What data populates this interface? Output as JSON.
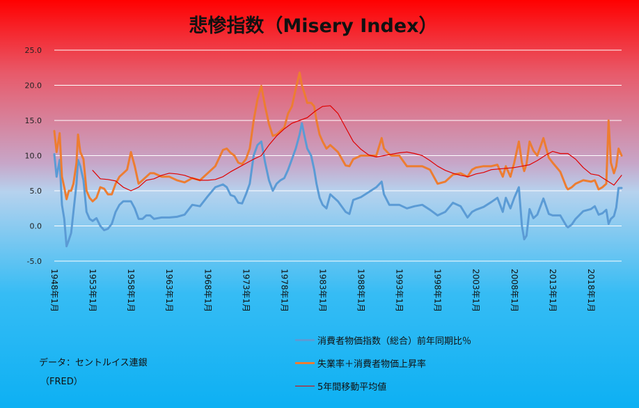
{
  "chart_data": {
    "type": "line",
    "title": "悲惨指数（Misery Index）",
    "y_ticks": [
      "25.0",
      "20.0",
      "15.0",
      "10.0",
      "5.0",
      "0.0",
      "-5.0"
    ],
    "ylim": [
      -5,
      25
    ],
    "x_ticks": [
      "1948年1月",
      "1953年1月",
      "1958年1月",
      "1963年1月",
      "1968年1月",
      "1973年1月",
      "1978年1月",
      "1983年1月",
      "1988年1月",
      "1993年1月",
      "1998年1月",
      "2003年1月",
      "2008年1月",
      "2013年1月",
      "2018年1月"
    ],
    "xlim": [
      1948.0,
      2022.0
    ],
    "grid": true,
    "legend_position": "bottom-right",
    "series": [
      {
        "name": "消費者物価指数（総合）前年同期比％",
        "color": "#5b9bd5",
        "x": [
          1948.0,
          1948.3,
          1948.7,
          1949.0,
          1949.3,
          1949.6,
          1949.9,
          1950.2,
          1950.5,
          1950.9,
          1951.1,
          1951.4,
          1951.8,
          1952.2,
          1952.6,
          1953.0,
          1953.5,
          1954.0,
          1954.5,
          1955.0,
          1955.5,
          1956.0,
          1956.5,
          1957.0,
          1957.5,
          1958.0,
          1958.5,
          1959.0,
          1959.5,
          1960.0,
          1960.5,
          1961.0,
          1962.0,
          1963.0,
          1964.0,
          1965.0,
          1966.0,
          1967.0,
          1968.0,
          1969.0,
          1970.0,
          1970.5,
          1971.0,
          1971.5,
          1972.0,
          1972.5,
          1973.0,
          1973.5,
          1974.0,
          1974.5,
          1975.0,
          1975.5,
          1976.0,
          1976.5,
          1977.0,
          1977.5,
          1978.0,
          1978.5,
          1979.0,
          1979.5,
          1980.0,
          1980.3,
          1980.6,
          1981.0,
          1981.5,
          1981.9,
          1982.2,
          1982.6,
          1983.0,
          1983.5,
          1984.0,
          1985.0,
          1986.0,
          1986.5,
          1987.0,
          1988.0,
          1989.0,
          1990.0,
          1990.7,
          1991.0,
          1991.7,
          1992.0,
          1993.0,
          1994.0,
          1995.0,
          1996.0,
          1997.0,
          1998.0,
          1999.0,
          2000.0,
          2001.0,
          2001.9,
          2002.5,
          2003.0,
          2004.0,
          2005.0,
          2005.8,
          2006.5,
          2006.9,
          2007.5,
          2008.0,
          2008.6,
          2009.0,
          2009.3,
          2009.6,
          2010.0,
          2010.5,
          2011.0,
          2011.8,
          2012.5,
          2013.0,
          2014.0,
          2014.8,
          2015.0,
          2015.5,
          2016.0,
          2017.0,
          2018.0,
          2018.5,
          2019.0,
          2019.5,
          2020.0,
          2020.3,
          2020.6,
          2021.0,
          2021.3,
          2021.6,
          2022.0
        ],
        "y": [
          10.2,
          7.0,
          9.4,
          3.0,
          1.0,
          -2.9,
          -2.0,
          -1.0,
          2.0,
          6.0,
          9.4,
          8.5,
          6.5,
          2.0,
          1.0,
          0.7,
          1.1,
          0.0,
          -0.6,
          -0.4,
          0.3,
          2.0,
          3.0,
          3.5,
          3.5,
          3.5,
          2.5,
          1.0,
          1.0,
          1.5,
          1.5,
          1.0,
          1.2,
          1.2,
          1.3,
          1.6,
          3.0,
          2.8,
          4.2,
          5.5,
          5.9,
          5.5,
          4.4,
          4.2,
          3.3,
          3.2,
          4.5,
          6.0,
          10.0,
          11.5,
          12.0,
          9.0,
          6.5,
          5.0,
          6.0,
          6.5,
          6.8,
          8.0,
          9.5,
          11.0,
          13.0,
          14.6,
          13.0,
          11.0,
          10.0,
          8.0,
          6.0,
          4.0,
          3.0,
          2.5,
          4.5,
          3.5,
          2.0,
          1.7,
          3.7,
          4.1,
          4.8,
          5.5,
          6.3,
          4.5,
          3.0,
          3.0,
          3.0,
          2.5,
          2.8,
          3.0,
          2.3,
          1.5,
          2.0,
          3.3,
          2.8,
          1.2,
          2.0,
          2.3,
          2.7,
          3.4,
          4.0,
          2.0,
          4.0,
          2.5,
          4.0,
          5.5,
          0.0,
          -1.9,
          -1.4,
          2.4,
          1.1,
          1.6,
          3.9,
          1.7,
          1.5,
          1.5,
          0.0,
          -0.2,
          0.2,
          1.0,
          2.1,
          2.4,
          2.8,
          1.6,
          1.8,
          2.3,
          0.3,
          1.0,
          1.4,
          2.6,
          5.4,
          5.4
        ]
      },
      {
        "name": "失業率＋消費者物価上昇率",
        "color": "#ed7d31",
        "x": [
          1948.0,
          1948.3,
          1948.7,
          1949.0,
          1949.3,
          1949.6,
          1949.9,
          1950.2,
          1950.5,
          1950.9,
          1951.1,
          1951.4,
          1951.8,
          1952.2,
          1952.6,
          1953.0,
          1953.5,
          1954.0,
          1954.5,
          1955.0,
          1955.5,
          1956.0,
          1956.5,
          1957.0,
          1957.5,
          1958.0,
          1958.5,
          1959.0,
          1959.5,
          1960.0,
          1960.5,
          1961.0,
          1962.0,
          1963.0,
          1964.0,
          1965.0,
          1966.0,
          1967.0,
          1968.0,
          1969.0,
          1970.0,
          1970.5,
          1971.0,
          1971.5,
          1972.0,
          1972.5,
          1973.0,
          1973.5,
          1974.0,
          1974.5,
          1975.0,
          1975.5,
          1976.0,
          1976.5,
          1977.0,
          1977.5,
          1978.0,
          1978.5,
          1979.0,
          1979.5,
          1980.0,
          1980.3,
          1980.6,
          1981.0,
          1981.5,
          1981.9,
          1982.2,
          1982.6,
          1983.0,
          1983.5,
          1984.0,
          1985.0,
          1986.0,
          1986.5,
          1987.0,
          1988.0,
          1989.0,
          1990.0,
          1990.7,
          1991.0,
          1991.7,
          1992.0,
          1993.0,
          1994.0,
          1995.0,
          1996.0,
          1997.0,
          1998.0,
          1999.0,
          2000.0,
          2001.0,
          2001.9,
          2002.5,
          2003.0,
          2004.0,
          2005.0,
          2005.8,
          2006.5,
          2006.9,
          2007.5,
          2008.0,
          2008.6,
          2009.0,
          2009.3,
          2009.6,
          2010.0,
          2010.5,
          2011.0,
          2011.8,
          2012.5,
          2013.0,
          2014.0,
          2014.8,
          2015.0,
          2015.5,
          2016.0,
          2017.0,
          2018.0,
          2018.5,
          2019.0,
          2019.5,
          2020.0,
          2020.3,
          2020.6,
          2021.0,
          2021.3,
          2021.6,
          2022.0
        ],
        "y": [
          13.5,
          10.5,
          13.2,
          7.0,
          5.5,
          3.8,
          5.0,
          5.0,
          6.0,
          9.0,
          13.0,
          10.5,
          9.5,
          5.0,
          4.0,
          3.5,
          4.0,
          5.5,
          5.3,
          4.5,
          4.5,
          6.0,
          7.0,
          7.5,
          8.0,
          10.5,
          8.5,
          6.0,
          6.5,
          7.0,
          7.5,
          7.5,
          7.0,
          7.0,
          6.5,
          6.2,
          6.8,
          6.5,
          7.5,
          8.5,
          10.8,
          11.0,
          10.4,
          10.0,
          9.0,
          8.8,
          9.5,
          11.0,
          15.0,
          18.0,
          19.9,
          17.0,
          14.5,
          12.8,
          13.0,
          13.5,
          14.0,
          16.0,
          17.0,
          19.5,
          21.8,
          20.0,
          19.0,
          17.5,
          17.5,
          17.0,
          15.0,
          13.0,
          12.0,
          11.0,
          11.5,
          10.5,
          8.6,
          8.5,
          9.5,
          10.0,
          10.0,
          10.0,
          12.5,
          11.0,
          10.2,
          10.0,
          10.0,
          8.5,
          8.5,
          8.5,
          8.0,
          6.0,
          6.3,
          7.3,
          7.5,
          7.0,
          8.0,
          8.3,
          8.5,
          8.5,
          8.7,
          7.0,
          8.5,
          7.0,
          9.0,
          12.0,
          9.0,
          7.8,
          8.8,
          12.0,
          10.7,
          10.0,
          12.5,
          9.7,
          9.0,
          7.7,
          5.5,
          5.2,
          5.5,
          6.0,
          6.5,
          6.3,
          6.5,
          5.2,
          5.5,
          6.0,
          15.0,
          9.0,
          7.5,
          8.5,
          11.0,
          10.0
        ]
      },
      {
        "name": "5年間移動平均値",
        "color": "#e00000",
        "x": [
          1953.0,
          1954.0,
          1955.0,
          1956.0,
          1957.0,
          1958.0,
          1959.0,
          1960.0,
          1961.0,
          1962.0,
          1963.0,
          1964.0,
          1965.0,
          1966.0,
          1967.0,
          1968.0,
          1969.0,
          1970.0,
          1971.0,
          1972.0,
          1973.0,
          1974.0,
          1975.0,
          1976.0,
          1977.0,
          1978.0,
          1979.0,
          1980.0,
          1981.0,
          1982.0,
          1983.0,
          1984.0,
          1985.0,
          1986.0,
          1987.0,
          1988.0,
          1989.0,
          1990.0,
          1991.0,
          1992.0,
          1993.0,
          1994.0,
          1995.0,
          1996.0,
          1997.0,
          1998.0,
          1999.0,
          2000.0,
          2001.0,
          2002.0,
          2003.0,
          2004.0,
          2005.0,
          2006.0,
          2007.0,
          2008.0,
          2009.0,
          2010.0,
          2011.0,
          2012.0,
          2013.0,
          2014.0,
          2015.0,
          2016.0,
          2017.0,
          2018.0,
          2019.0,
          2020.0,
          2021.0,
          2022.0
        ],
        "y": [
          7.9,
          6.7,
          6.6,
          6.4,
          5.5,
          5.0,
          5.5,
          6.5,
          6.7,
          7.2,
          7.5,
          7.4,
          7.2,
          6.8,
          6.5,
          6.5,
          6.6,
          7.0,
          7.7,
          8.3,
          8.9,
          9.5,
          10.0,
          11.5,
          12.8,
          13.8,
          14.6,
          15.0,
          15.4,
          16.3,
          17.0,
          17.1,
          16.0,
          14.0,
          12.0,
          10.9,
          10.1,
          9.8,
          10.0,
          10.2,
          10.4,
          10.5,
          10.3,
          10.0,
          9.3,
          8.5,
          7.9,
          7.5,
          7.2,
          7.0,
          7.4,
          7.6,
          8.0,
          8.1,
          8.2,
          8.3,
          8.5,
          8.7,
          9.3,
          10.0,
          10.6,
          10.3,
          10.3,
          9.5,
          8.3,
          7.4,
          7.2,
          6.5,
          5.8,
          7.2
        ]
      }
    ]
  },
  "notes": {
    "source_line1": "データ：セントルイス連銀",
    "source_line2": "（FRED）"
  }
}
